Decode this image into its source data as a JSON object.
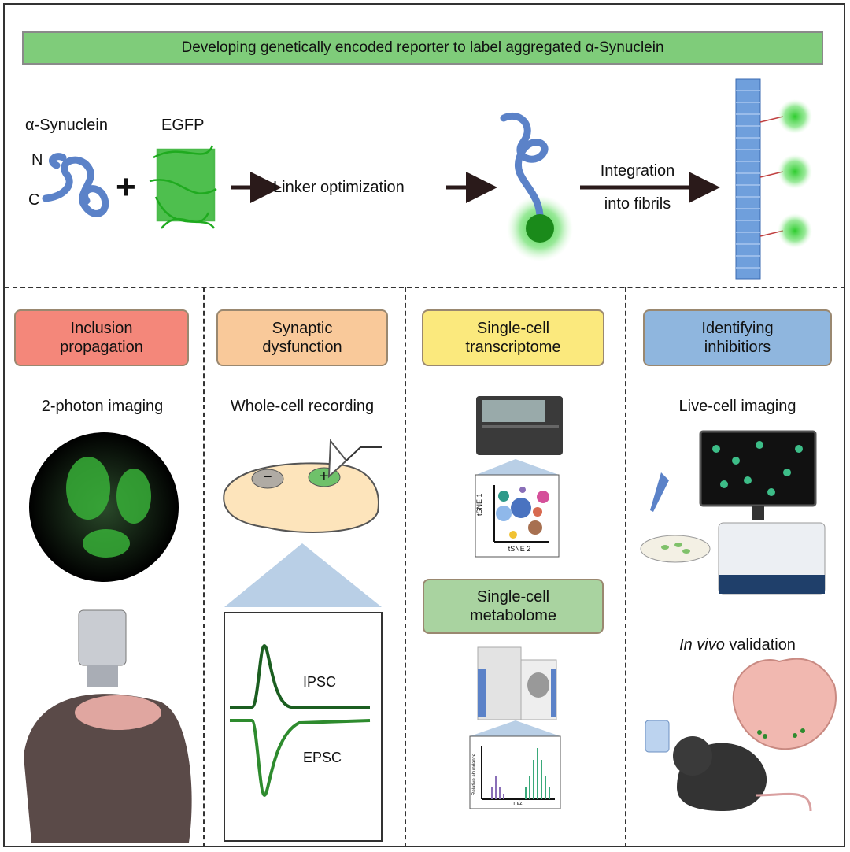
{
  "banner": {
    "title": "Developing genetically encoded reporter to label aggregated α-Synuclein"
  },
  "top": {
    "synuclein_label": "α-Synuclein",
    "egfp_label": "EGFP",
    "n_label": "N",
    "c_label": "C",
    "plus": "+",
    "linker_label": "Linker optimization",
    "integration_label_1": "Integration",
    "integration_label_2": "into fibrils"
  },
  "columns": [
    {
      "card": [
        "Inclusion",
        "propagation"
      ],
      "card_color": "#f4877a",
      "method": "2-photon imaging"
    },
    {
      "card": [
        "Synaptic",
        "dysfunction"
      ],
      "card_color": "#f9c99a",
      "method": "Whole-cell recording",
      "minus": "−",
      "plus": "+",
      "trace_1": "IPSC",
      "trace_2": "EPSC"
    },
    {
      "card": [
        "Single-cell",
        "transcriptome"
      ],
      "card_color": "#fbe97d",
      "tsne_y": "tSNE 1",
      "tsne_x": "tSNE 2",
      "card2": [
        "Single-cell",
        "metabolome"
      ],
      "card2_color": "#a9d3a0",
      "ms_y": "Relative abundance",
      "ms_x": "m/z"
    },
    {
      "card": [
        "Identifying",
        "inhibitiors"
      ],
      "card_color": "#8fb6de",
      "method": "Live-cell imaging",
      "method2_italic": "In vivo",
      "method2_rest": " validation"
    }
  ]
}
